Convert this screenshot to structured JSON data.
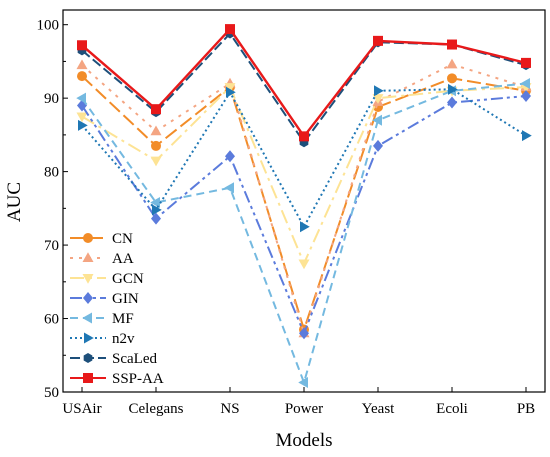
{
  "chart_data": {
    "type": "line",
    "xlabel": "Models",
    "ylabel": "AUC",
    "ylim": [
      50,
      102
    ],
    "yticks": [
      50,
      60,
      70,
      80,
      90,
      100
    ],
    "categories": [
      "USAir",
      "Celegans",
      "NS",
      "Power",
      "Yeast",
      "Ecoli",
      "PB"
    ],
    "grid": false,
    "legend_position": "lower-left",
    "series": [
      {
        "name": "CN",
        "values": [
          93.0,
          83.5,
          91.5,
          58.5,
          88.8,
          92.7,
          91.0
        ],
        "color": "#f28c28",
        "dash": "14,5",
        "marker": "circle"
      },
      {
        "name": "AA",
        "values": [
          94.5,
          85.5,
          92.0,
          58.0,
          89.5,
          94.6,
          91.5
        ],
        "color": "#f4a582",
        "dash": "3,6",
        "marker": "triangle-up"
      },
      {
        "name": "GCN",
        "values": [
          87.5,
          81.5,
          91.5,
          67.5,
          90.0,
          91.0,
          91.5
        ],
        "color": "#fde394",
        "dash": "14,5,3,5",
        "marker": "triangle-down"
      },
      {
        "name": "GIN",
        "values": [
          89.0,
          73.6,
          82.1,
          58.0,
          83.5,
          89.4,
          90.3
        ],
        "color": "#5b7bdc",
        "dash": "12,4,3,4,3,4",
        "marker": "diamond"
      },
      {
        "name": "MF",
        "values": [
          90.0,
          75.8,
          77.8,
          51.3,
          87.0,
          91.0,
          92.0
        ],
        "color": "#74b9e0",
        "dash": "8,5",
        "marker": "triangle-left"
      },
      {
        "name": "n2v",
        "values": [
          86.3,
          74.8,
          90.8,
          72.5,
          91.0,
          91.2,
          84.9
        ],
        "color": "#1f77b4",
        "dash": "2,3",
        "marker": "triangle-right"
      },
      {
        "name": "ScaLed",
        "values": [
          96.5,
          88.1,
          98.8,
          84.0,
          97.6,
          97.3,
          94.5
        ],
        "color": "#1d4f7a",
        "dash": "10,4",
        "marker": "hexagon"
      },
      {
        "name": "SSP-AA",
        "values": [
          97.2,
          88.5,
          99.4,
          84.8,
          97.8,
          97.3,
          94.8
        ],
        "color": "#e8191a",
        "dash": "",
        "marker": "square"
      }
    ]
  }
}
